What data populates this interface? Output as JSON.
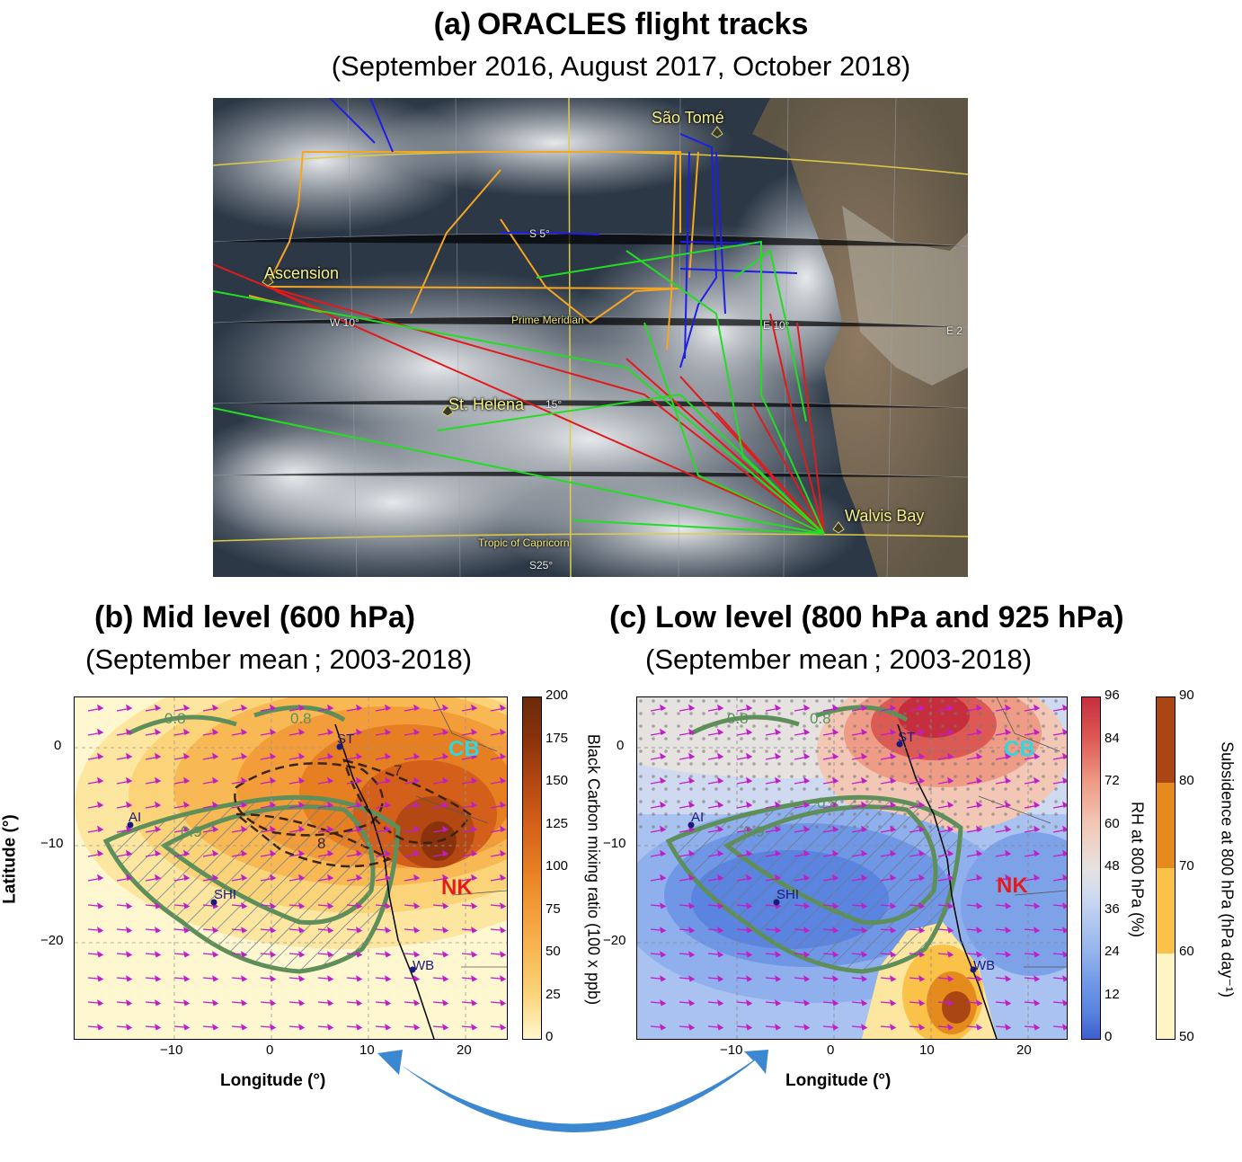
{
  "figure": {
    "title": "(a) ORACLES flight tracks",
    "subtitle": "(September 2016, August 2017, October 2018)"
  },
  "panel_a": {
    "places": {
      "sao_tome": "São Tomé",
      "ascension": "Ascension",
      "st_helena": "St. Helena",
      "walvis_bay": "Walvis Bay"
    },
    "lines": {
      "prime_meridian": "Prime Meridian",
      "tropic": "Tropic of Capricorn"
    },
    "grid_labels": {
      "s5": "S 5°",
      "w10": "W 10°",
      "e10": "E 10°",
      "s15": "15°",
      "s25": "S25°",
      "e2": "E 2"
    },
    "track_colors": {
      "y2016": "#f5a623",
      "y2017": "#1e1ee6",
      "y2018": "#e11b1b",
      "extra": "#22dd22"
    }
  },
  "panel_b": {
    "title": "(b) Mid level (600 hPa)",
    "subtitle": "(September mean ; 2003-2018)",
    "xlabel": "Longitude (°)",
    "ylabel": "Latitude (°)",
    "xticks": [
      "−10",
      "0",
      "10",
      "20"
    ],
    "yticks": [
      "0",
      "−10",
      "−20"
    ],
    "colorbar_label": "Black Carbon mixing ratio (100 x ppb)",
    "colorbar_ticks": [
      "200",
      "175",
      "150",
      "125",
      "100",
      "75",
      "50",
      "25",
      "0"
    ],
    "contour_labels": [
      "0.8",
      "0.8",
      "0.9",
      "7",
      "8"
    ],
    "regions": {
      "cb": "CB",
      "nk": "NK"
    },
    "sites": [
      "ST",
      "AI",
      "SHI",
      "WB"
    ]
  },
  "panel_c": {
    "title": "(c) Low level (800 hPa and 925 hPa)",
    "subtitle": "(September mean ; 2003-2018)",
    "xlabel": "Longitude (°)",
    "xticks": [
      "−10",
      "0",
      "10",
      "20"
    ],
    "yticks": [
      "0",
      "−10",
      "−20"
    ],
    "colorbar1_label": "RH at 800 hPa (%)",
    "colorbar1_ticks": [
      "96",
      "84",
      "72",
      "60",
      "48",
      "36",
      "24",
      "12",
      "0"
    ],
    "colorbar2_label": "Subsidence at 800 hPa (hPa day⁻¹)",
    "colorbar2_ticks": [
      "90",
      "80",
      "70",
      "60",
      "50"
    ],
    "contour_labels": [
      "0.8",
      "0.8",
      "0.9",
      "0.8"
    ],
    "regions": {
      "cb": "CB",
      "nk": "NK"
    },
    "sites": [
      "ST",
      "AI",
      "SHI",
      "WB"
    ]
  },
  "colors": {
    "cb_region": "#33d6e0",
    "nk_region": "#e41a1c",
    "wind_arrow": "#c01ec8",
    "contour": "#5e8f5a",
    "arrow_link": "#3b87d2"
  }
}
